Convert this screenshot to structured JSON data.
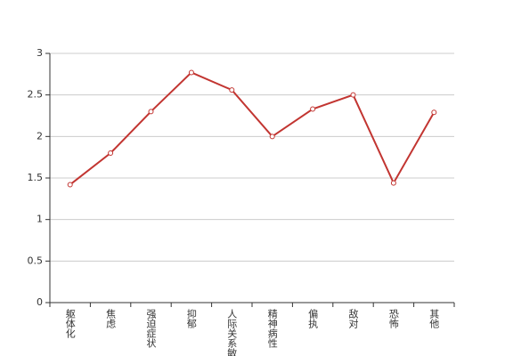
{
  "chart_data": {
    "type": "line",
    "categories": [
      "躯体化",
      "焦虑",
      "强迫症状",
      "抑郁",
      "人际关系敏感",
      "精神病性",
      "偏执",
      "敌对",
      "恐怖",
      "其他"
    ],
    "series": [
      {
        "color": "#c23531",
        "values": [
          1.42,
          1.8,
          2.3,
          2.77,
          2.56,
          2.0,
          2.33,
          2.5,
          1.44,
          2.29
        ]
      }
    ],
    "ylim": [
      0,
      3
    ],
    "yticks": [
      0,
      0.5,
      1,
      1.5,
      2,
      2.5,
      3
    ],
    "grid": true
  }
}
